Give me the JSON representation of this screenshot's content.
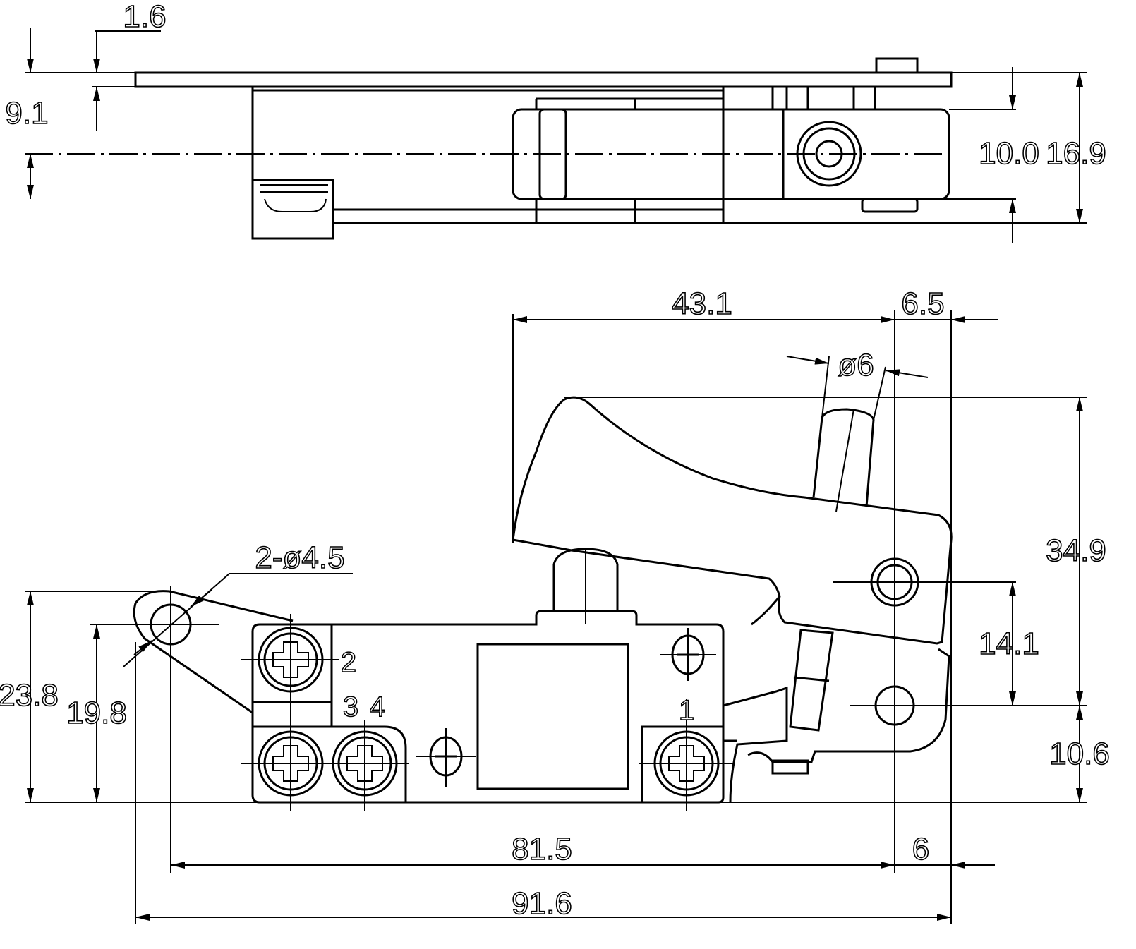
{
  "top_view": {
    "dimensions": {
      "plate_thickness": "1.6",
      "plate_to_center": "9.1",
      "trigger_width": "10.0",
      "overall_height": "16.9"
    }
  },
  "front_view": {
    "dimensions": {
      "trigger_length": "43.1",
      "trigger_overhang": "6.5",
      "pin_diameter": "ø6",
      "mounting_holes": "2-ø4.5",
      "trigger_height": "34.9",
      "pivot_offset": "14.1",
      "hole_height": "23.8",
      "body_height": "19.8",
      "lower_pivot_height": "10.6",
      "hole_spacing": "81.5",
      "right_offset": "6",
      "overall_length": "91.6"
    },
    "terminals": [
      "2",
      "3",
      "4",
      "1"
    ]
  }
}
